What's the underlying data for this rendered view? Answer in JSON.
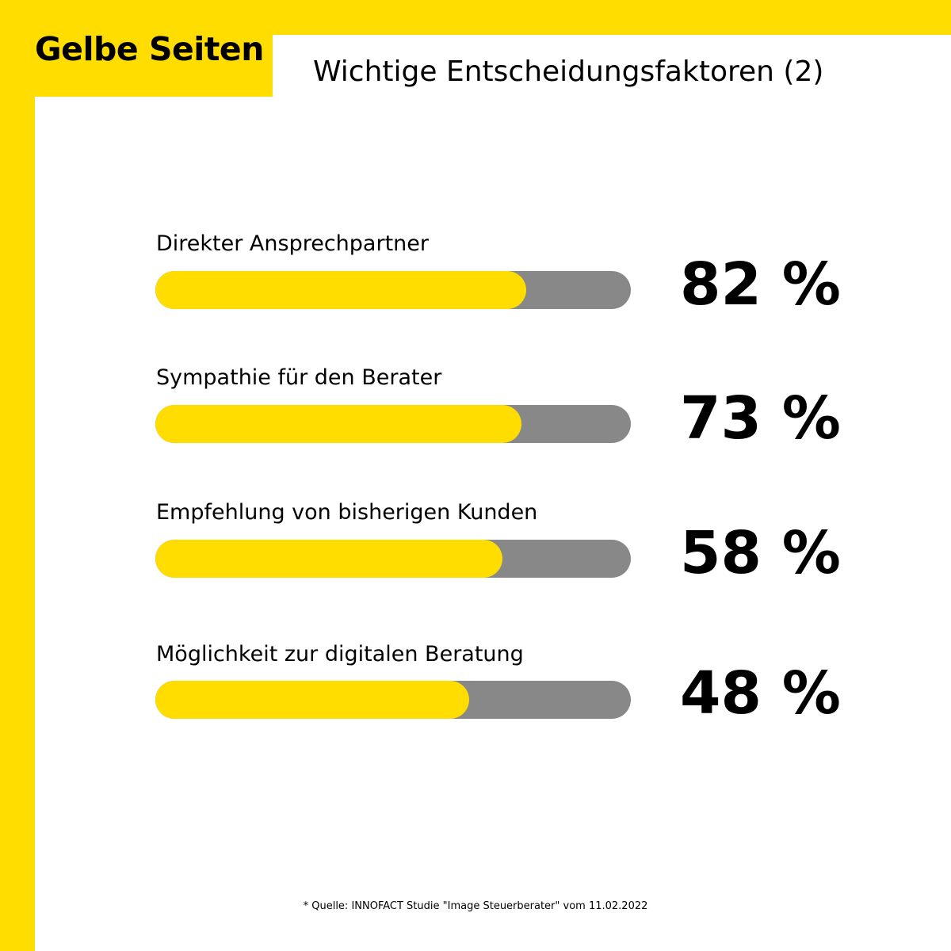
{
  "brand": "Gelbe Seiten",
  "title": "Wichtige Entscheidungsfaktoren (2)",
  "source": "* Quelle: INNOFACT Studie \"Image Steuerberater\" vom 11.02.2022",
  "colors": {
    "accent": "#FFDD00",
    "track": "#888888",
    "background": "#FFFFFF",
    "text": "#000000"
  },
  "chart_data": {
    "type": "bar",
    "orientation": "horizontal",
    "categories": [
      "Direkter Ansprechpartner",
      "Sympathie für den Berater",
      "Empfehlung von bisherigen Kunden",
      "Möglichkeit zur digitalen Beratung"
    ],
    "values": [
      82,
      73,
      58,
      48
    ],
    "value_labels": [
      "82 %",
      "73 %",
      "58 %",
      "48 %"
    ],
    "fill_fraction": [
      0.78,
      0.77,
      0.73,
      0.66
    ],
    "unit": "%",
    "title": "Wichtige Entscheidungsfaktoren (2)"
  }
}
